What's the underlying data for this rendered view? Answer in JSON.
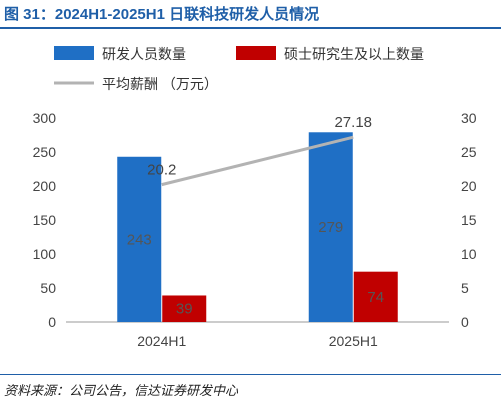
{
  "figure": {
    "title": "图 31：2024H1-2025H1 日联科技研发人员情况",
    "source": "资料来源：公司公告，信达证券研发中心"
  },
  "chart_data": {
    "type": "bar",
    "categories": [
      "2024H1",
      "2025H1"
    ],
    "series": [
      {
        "name": "研发人员数量",
        "type": "bar",
        "axis": "left",
        "values": [
          243,
          279
        ],
        "color": "#1f6fc5"
      },
      {
        "name": "硕士研究生及以上数量",
        "type": "bar",
        "axis": "left",
        "values": [
          39,
          74
        ],
        "color": "#c00000"
      },
      {
        "name": "平均薪酬 （万元）",
        "type": "line",
        "axis": "right",
        "values": [
          20.2,
          27.18
        ],
        "color": "#b3b3b3"
      }
    ],
    "y_left": {
      "ylim": [
        0,
        300
      ],
      "ticks": [
        0,
        50,
        100,
        150,
        200,
        250,
        300
      ]
    },
    "y_right": {
      "ylim": [
        0,
        30
      ],
      "ticks": [
        0,
        5,
        10,
        15,
        20,
        25,
        30
      ]
    },
    "data_labels": {
      "bars": [
        [
          "243",
          "39"
        ],
        [
          "279",
          "74"
        ]
      ],
      "line": [
        "20.2",
        "27.18"
      ]
    },
    "legend": "top",
    "grid": false
  }
}
